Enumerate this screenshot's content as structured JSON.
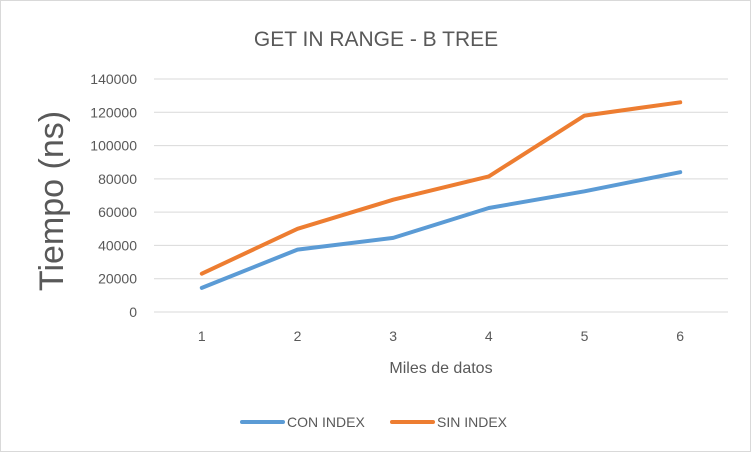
{
  "chart_data": {
    "type": "line",
    "title": "GET IN RANGE - B TREE",
    "xlabel": "Miles de datos",
    "ylabel": "Tiempo (ns)",
    "categories": [
      "1",
      "2",
      "3",
      "4",
      "5",
      "6"
    ],
    "ylim": [
      0,
      140000
    ],
    "yticks": [
      0,
      20000,
      40000,
      60000,
      80000,
      100000,
      120000,
      140000
    ],
    "grid": true,
    "legend_position": "bottom",
    "series": [
      {
        "name": "CON INDEX",
        "color": "#5b9bd5",
        "values": [
          14500,
          37500,
          44500,
          62500,
          72500,
          84000
        ]
      },
      {
        "name": "SIN INDEX",
        "color": "#ed7d31",
        "values": [
          23000,
          50000,
          67500,
          81500,
          118000,
          126000
        ]
      }
    ]
  }
}
